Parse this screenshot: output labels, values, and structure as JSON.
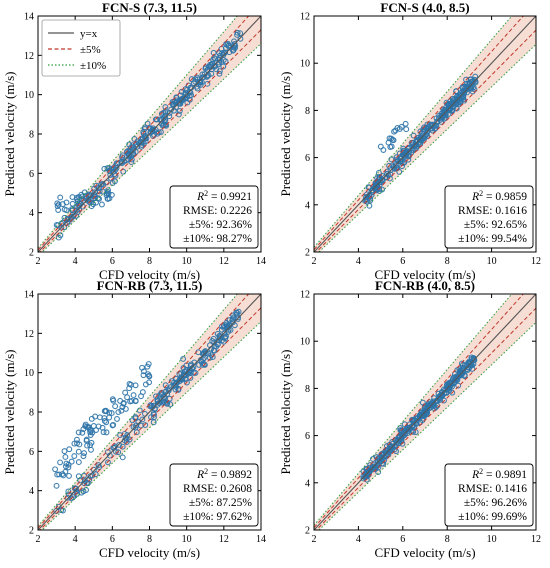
{
  "colors": {
    "scatter": "#2c73a8",
    "band": "#f4d8cc",
    "identity_line": "#555555",
    "five_pct_line": "#c0392b",
    "ten_pct_line": "#2e9e3c"
  },
  "legend": {
    "items": [
      {
        "label": "y=x",
        "style": "solid"
      },
      {
        "label": "±5%",
        "style": "dashed"
      },
      {
        "label": "±10%",
        "style": "dotted"
      }
    ],
    "placement": "top-left of first panel"
  },
  "chart_data": [
    {
      "type": "scatter",
      "title": "FCN-S (7.3, 11.5)",
      "xlabel": "CFD velocity (m/s)",
      "ylabel": "Predicted velocity (m/s)",
      "xlim": [
        2,
        14
      ],
      "ylim": [
        2,
        14
      ],
      "xticks": [
        2,
        4,
        6,
        8,
        10,
        12,
        14
      ],
      "yticks": [
        2,
        4,
        6,
        8,
        10,
        12,
        14
      ],
      "stats": {
        "r2_label": "R",
        "r2_value": "= 0.9921",
        "rmse": "RMSE: 0.2226",
        "p5": "±5%: 92.36%",
        "p10": "±10%: 98.27%"
      },
      "x_range": [
        3.0,
        12.9
      ],
      "spread": 0.3
    },
    {
      "type": "scatter",
      "title": "FCN-S (4.0, 8.5)",
      "xlabel": "CFD velocity (m/s)",
      "ylabel": "Predicted velocity (m/s)",
      "xlim": [
        2,
        12
      ],
      "ylim": [
        2,
        12
      ],
      "xticks": [
        2,
        4,
        6,
        8,
        10,
        12
      ],
      "yticks": [
        2,
        4,
        6,
        8,
        10,
        12
      ],
      "stats": {
        "r2_label": "R",
        "r2_value": "= 0.9859",
        "rmse": "RMSE: 0.1616",
        "p5": "±5%: 92.65%",
        "p10": "±10%: 99.54%"
      },
      "x_range": [
        4.3,
        9.3
      ],
      "spread": 0.18
    },
    {
      "type": "scatter",
      "title": "FCN-RB (7.3, 11.5)",
      "xlabel": "CFD velocity (m/s)",
      "ylabel": "Predicted velocity (m/s)",
      "xlim": [
        2,
        14
      ],
      "ylim": [
        2,
        14
      ],
      "xticks": [
        2,
        4,
        6,
        8,
        10,
        12,
        14
      ],
      "yticks": [
        2,
        4,
        6,
        8,
        10,
        12,
        14
      ],
      "stats": {
        "r2_label": "R",
        "r2_value": "= 0.9892",
        "rmse": "RMSE: 0.2608",
        "p5": "±5%: 87.25%",
        "p10": "±10%: 97.62%"
      },
      "x_range": [
        2.9,
        12.8
      ],
      "spread": 0.35
    },
    {
      "type": "scatter",
      "title": "FCN-RB (4.0, 8.5)",
      "xlabel": "CFD velocity (m/s)",
      "ylabel": "Predicted velocity (m/s)",
      "xlim": [
        2,
        12
      ],
      "ylim": [
        2,
        12
      ],
      "xticks": [
        2,
        4,
        6,
        8,
        10,
        12
      ],
      "yticks": [
        2,
        4,
        6,
        8,
        10,
        12
      ],
      "stats": {
        "r2_label": "R",
        "r2_value": "= 0.9891",
        "rmse": "RMSE: 0.1416",
        "p5": "±5%: 96.26%",
        "p10": "±10%: 99.69%"
      },
      "x_range": [
        4.2,
        9.3
      ],
      "spread": 0.15
    }
  ]
}
